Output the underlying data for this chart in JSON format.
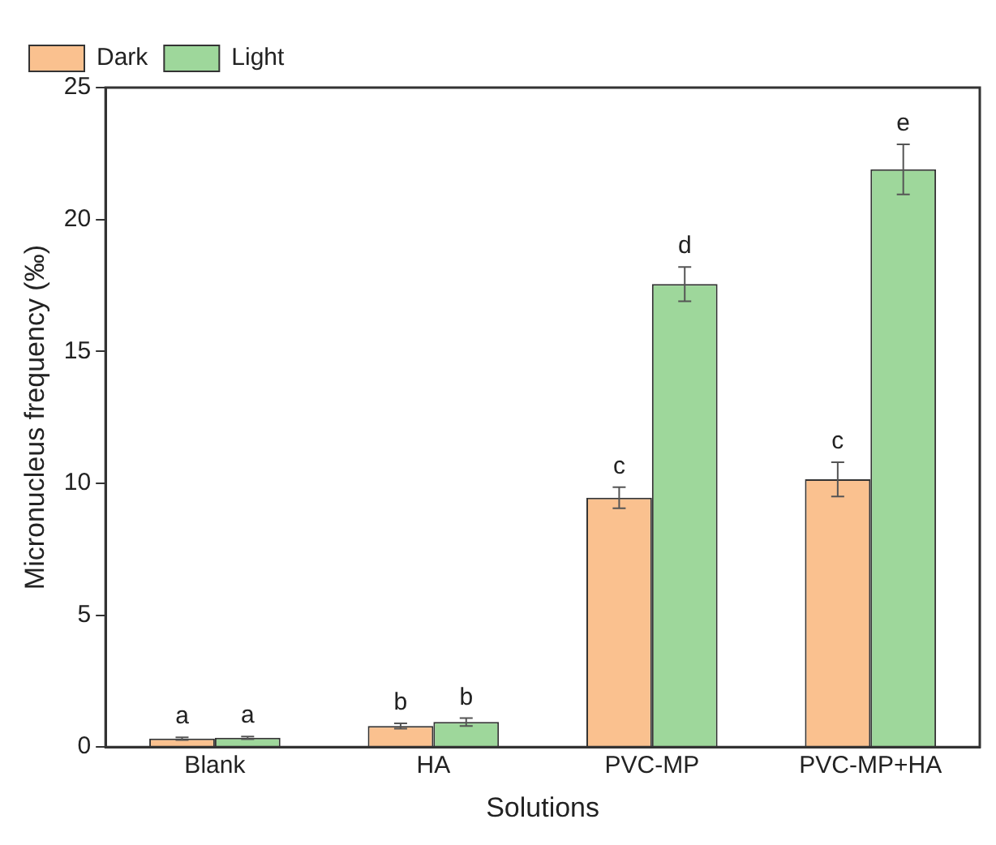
{
  "chart_data": {
    "type": "bar",
    "xlabel": "Solutions",
    "ylabel": "Micronucleus frequency (‰)",
    "categories": [
      "Blank",
      "HA",
      "PVC-MP",
      "PVC-MP+HA"
    ],
    "series": [
      {
        "name": "Dark",
        "color": "#fac18f",
        "values": [
          0.32,
          0.8,
          9.45,
          10.15
        ],
        "errors": [
          0.05,
          0.1,
          0.4,
          0.65
        ],
        "value_labels": [
          "a",
          "b",
          "c",
          "c"
        ]
      },
      {
        "name": "Light",
        "color": "#9ed79b",
        "values": [
          0.35,
          0.95,
          17.55,
          21.9
        ],
        "errors": [
          0.05,
          0.15,
          0.65,
          0.95
        ],
        "value_labels": [
          "a",
          "b",
          "d",
          "e"
        ]
      }
    ],
    "ylim": [
      0,
      25
    ],
    "yticks": [
      0,
      5,
      10,
      15,
      20,
      25
    ],
    "grid": false,
    "legend": "top left"
  }
}
